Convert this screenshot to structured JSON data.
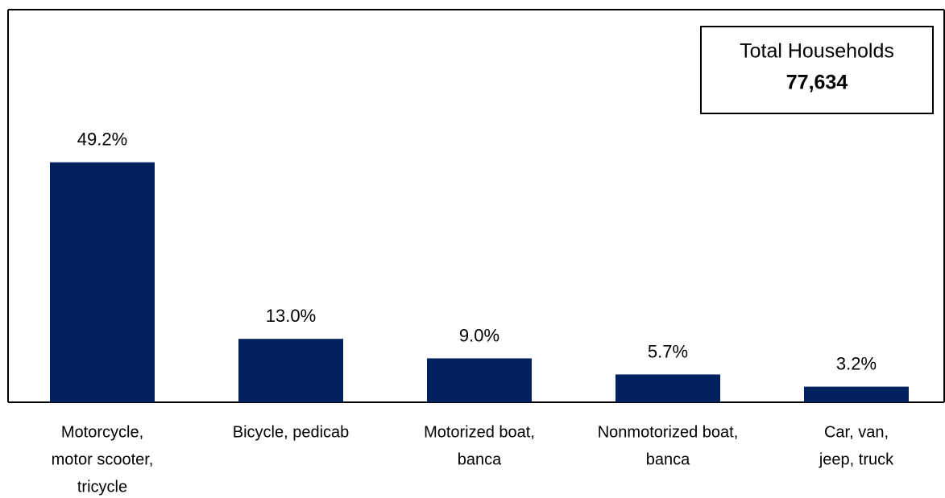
{
  "chart_data": {
    "type": "bar",
    "categories": [
      [
        "Motorcycle,",
        "motor scooter,",
        "tricycle"
      ],
      [
        "Bicycle, pedicab"
      ],
      [
        "Motorized boat,",
        "banca"
      ],
      [
        "Nonmotorized boat,",
        "banca"
      ],
      [
        "Car, van,",
        "jeep, truck"
      ]
    ],
    "values": [
      49.2,
      13.0,
      9.0,
      5.7,
      3.2
    ],
    "value_labels": [
      "49.2%",
      "13.0%",
      "9.0%",
      "5.7%",
      "3.2%"
    ],
    "color": "#002060",
    "ylim": [
      0,
      80
    ],
    "annotation": {
      "title": "Total Households",
      "text": "77,634"
    }
  }
}
